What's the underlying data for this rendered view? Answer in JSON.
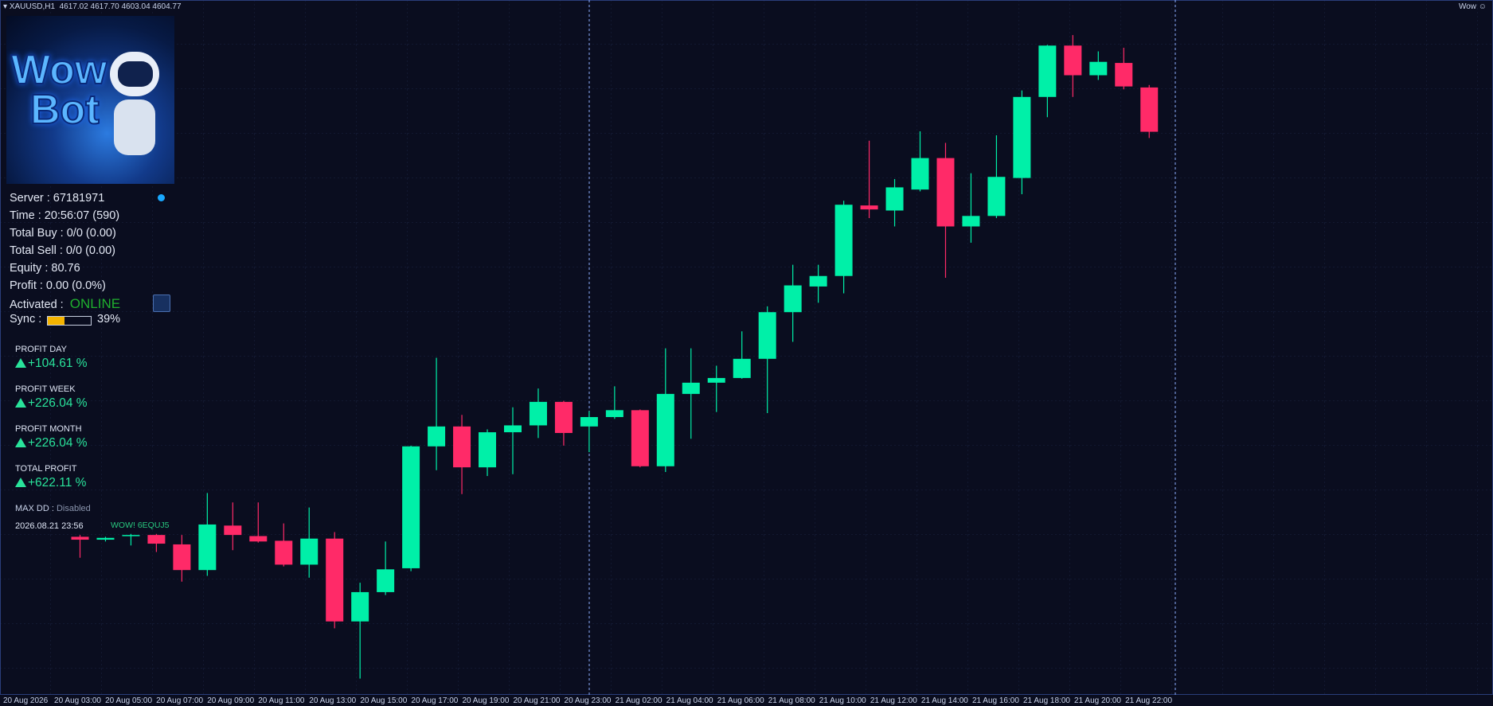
{
  "header": {
    "symbol": "XAUUSD,H1",
    "ohlc": "4617.02 4617.70 4603.04 4604.77",
    "indicator": "Wow"
  },
  "panel": {
    "logo": {
      "line1": "Wow",
      "line2": "Bot"
    },
    "lines": [
      "Server : 67181971",
      "Time : 20:56:07 (590)",
      "Total Buy : 0/0 (0.00)",
      "Total Sell : 0/0 (0.00)",
      "Equity : 80.76",
      "Profit : 0.00 (0.0%)"
    ],
    "activated": {
      "label": "Activated :",
      "status": "ONLINE"
    },
    "sync": {
      "label": "Sync :",
      "value": 39,
      "value_label": "39%"
    },
    "stats": [
      {
        "label": "PROFIT DAY",
        "value": "+104.61 %"
      },
      {
        "label": "PROFIT WEEK",
        "value": "+226.04 %"
      },
      {
        "label": "PROFIT MONTH",
        "value": "+226.04 %"
      },
      {
        "label": "TOTAL PROFIT",
        "value": "+622.11 %"
      }
    ],
    "max_dd": {
      "label": "MAX DD :",
      "value": "Disabled"
    },
    "timestamp": "2026.08.21 23:56",
    "code": "WOW! 6EQUJ5"
  },
  "chart_data": {
    "type": "candlestick",
    "up_color": "#00f0a8",
    "down_color": "#ff2a68",
    "ylim": [
      4449.1,
      4641.2
    ],
    "x_labels": [
      "20 Aug 2026",
      "20 Aug 03:00",
      "20 Aug 05:00",
      "20 Aug 07:00",
      "20 Aug 09:00",
      "20 Aug 11:00",
      "20 Aug 13:00",
      "20 Aug 15:00",
      "20 Aug 17:00",
      "20 Aug 19:00",
      "20 Aug 21:00",
      "20 Aug 23:00",
      "21 Aug 02:00",
      "21 Aug 04:00",
      "21 Aug 06:00",
      "21 Aug 08:00",
      "21 Aug 10:00",
      "21 Aug 12:00",
      "21 Aug 14:00",
      "21 Aug 16:00",
      "21 Aug 18:00",
      "21 Aug 20:00",
      "21 Aug 22:00"
    ],
    "open": [
      4492.8,
      4492.0,
      4493.0,
      4493.3,
      4490.7,
      4483.6,
      4495.9,
      4493.0,
      4491.7,
      4485.1,
      4492.3,
      4469.4,
      4477.5,
      4484.1,
      4517.8,
      4523.3,
      4512.0,
      4521.7,
      4523.6,
      4530.1,
      4523.3,
      4525.9,
      4527.8,
      4512.3,
      4532.3,
      4535.4,
      4536.7,
      4542.0,
      4554.9,
      4562.0,
      4564.9,
      4584.4,
      4583.0,
      4588.8,
      4597.5,
      4578.6,
      4581.5,
      4592.0,
      4614.4,
      4628.6,
      4620.4,
      4623.8,
      4617.02
    ],
    "high": [
      4493.3,
      4492.8,
      4493.6,
      4493.6,
      4493.3,
      4504.9,
      4502.3,
      4502.3,
      4496.5,
      4500.9,
      4494.1,
      4480.1,
      4491.5,
      4518.0,
      4542.3,
      4526.5,
      4522.5,
      4528.6,
      4533.8,
      4530.4,
      4527.5,
      4534.4,
      4528.0,
      4544.9,
      4544.9,
      4540.1,
      4549.6,
      4556.5,
      4568.0,
      4568.0,
      4585.7,
      4602.3,
      4591.7,
      4604.9,
      4601.7,
      4593.3,
      4603.8,
      4616.2,
      4628.8,
      4631.5,
      4627.0,
      4628.0,
      4617.7
    ],
    "low": [
      4487.0,
      4491.5,
      4490.4,
      4488.6,
      4480.4,
      4482.0,
      4489.1,
      4491.2,
      4484.6,
      4481.5,
      4467.5,
      4453.6,
      4476.7,
      4483.3,
      4511.2,
      4504.6,
      4509.6,
      4510.1,
      4520.1,
      4518.0,
      4516.2,
      4525.4,
      4512.0,
      4510.7,
      4519.9,
      4527.3,
      4536.5,
      4527.0,
      4546.7,
      4557.5,
      4560.1,
      4580.9,
      4578.6,
      4588.3,
      4564.4,
      4574.1,
      4580.9,
      4587.5,
      4608.8,
      4614.4,
      4619.1,
      4616.5,
      4603.04
    ],
    "close": [
      4492.0,
      4492.5,
      4493.3,
      4490.9,
      4483.6,
      4496.2,
      4493.3,
      4491.5,
      4485.1,
      4492.3,
      4469.4,
      4477.5,
      4483.8,
      4517.8,
      4523.3,
      4512.0,
      4521.7,
      4523.6,
      4530.1,
      4521.5,
      4525.9,
      4527.8,
      4512.3,
      4532.3,
      4535.4,
      4536.7,
      4542.0,
      4554.9,
      4562.3,
      4564.9,
      4584.6,
      4583.3,
      4589.4,
      4597.5,
      4578.6,
      4581.5,
      4592.3,
      4614.4,
      4628.6,
      4620.4,
      4624.1,
      4617.3,
      4604.77
    ]
  }
}
